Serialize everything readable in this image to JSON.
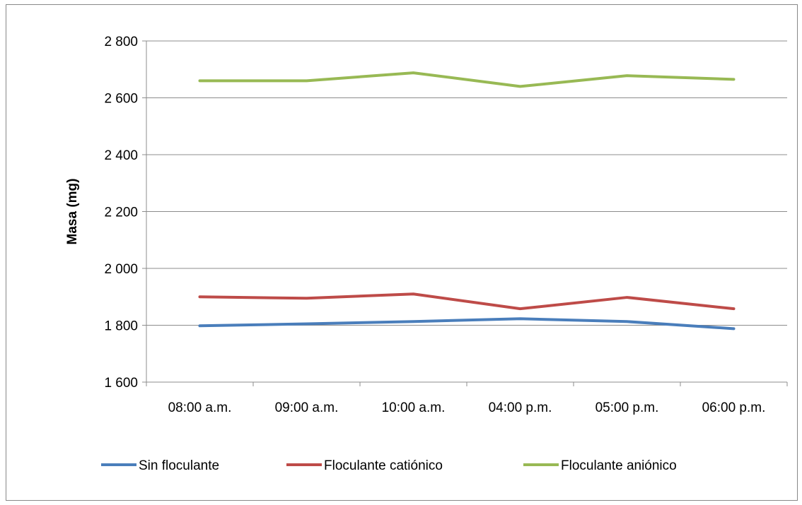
{
  "chart_data": {
    "type": "line",
    "title": "",
    "xlabel": "",
    "ylabel": "Masa (mg)",
    "categories": [
      "08:00 a.m.",
      "09:00 a.m.",
      "10:00 a.m.",
      "04:00 p.m.",
      "05:00 p.m.",
      "06:00 p.m."
    ],
    "ylim": [
      1600,
      2800
    ],
    "yticks": [
      1600,
      1800,
      2000,
      2200,
      2400,
      2600,
      2800
    ],
    "ytick_labels": [
      "1 600",
      "1 800",
      "2 000",
      "2 200",
      "2 400",
      "2 600",
      "2 800"
    ],
    "grid": true,
    "legend_position": "bottom",
    "series": [
      {
        "name": "Sin floculante",
        "color": "#4a7ebb",
        "values": [
          1798,
          1805,
          1813,
          1823,
          1813,
          1788
        ]
      },
      {
        "name": "Floculante catiónico",
        "color": "#be4b48",
        "values": [
          1900,
          1895,
          1910,
          1858,
          1898,
          1858
        ]
      },
      {
        "name": "Floculante aniónico",
        "color": "#98b954",
        "values": [
          2660,
          2660,
          2688,
          2640,
          2678,
          2665
        ]
      }
    ]
  }
}
